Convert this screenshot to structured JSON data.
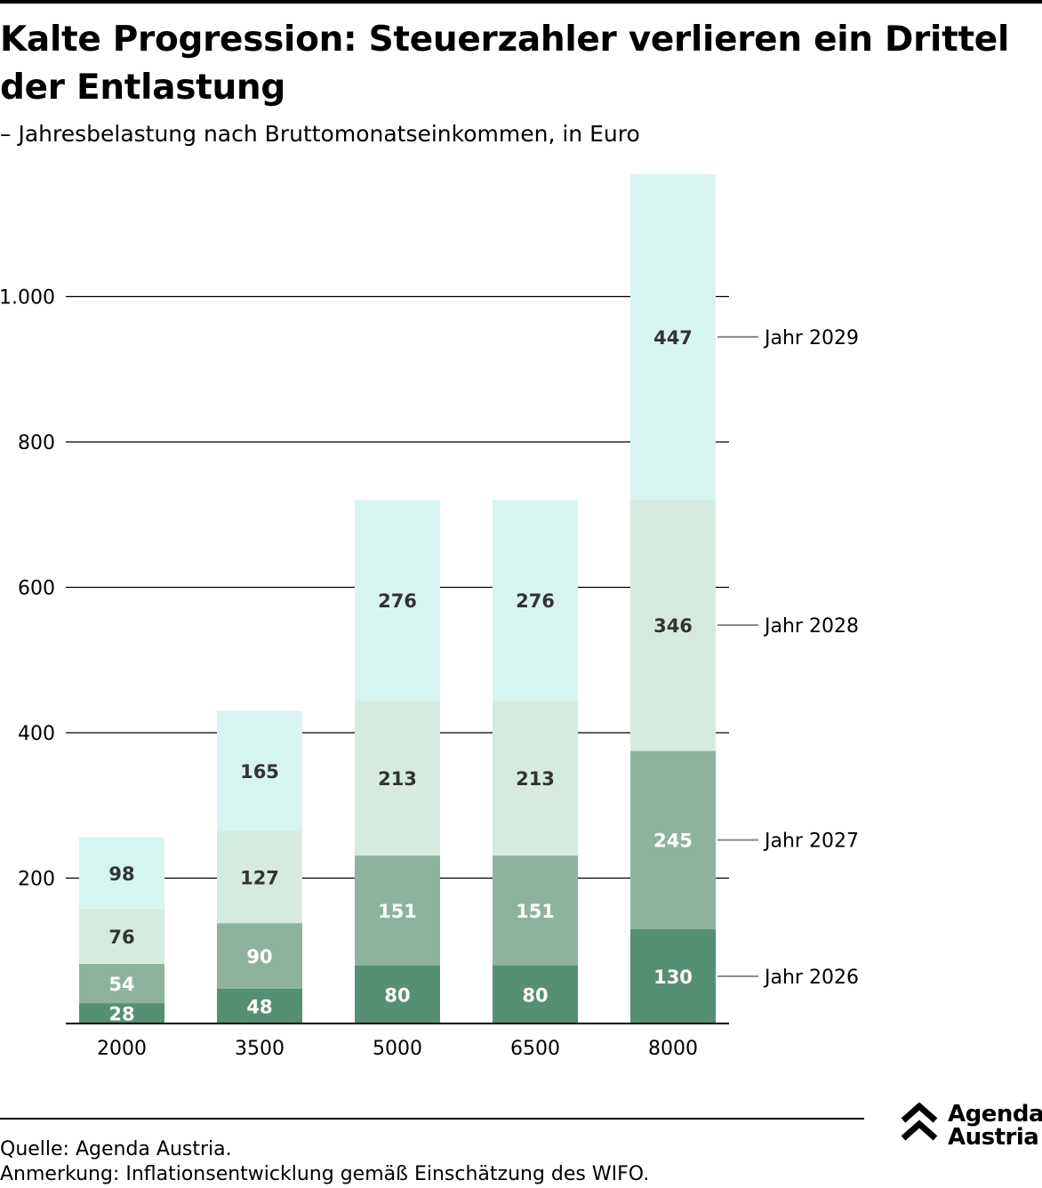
{
  "title": "Kalte Progression: Steuerzahler verlieren ein Drittel der Entlastung",
  "subtitle": "– Jahresbelastung nach Bruttomonatseinkommen, in Euro",
  "footer": {
    "source": "Quelle: Agenda Austria.",
    "note": "Anmerkung: Inflationsentwicklung gemäß Einschätzung des WIFO."
  },
  "logo": {
    "line1": "Agenda",
    "line2": "Austria"
  },
  "icons": {
    "logo": "double-chevron-up-icon"
  },
  "chart_data": {
    "type": "bar",
    "stacked": true,
    "categories": [
      "2000",
      "3500",
      "5000",
      "6500",
      "8000"
    ],
    "series": [
      {
        "name": "Jahr 2026",
        "values": [
          28,
          48,
          80,
          80,
          130
        ],
        "color": "#558f74",
        "label_color": "#ffffff"
      },
      {
        "name": "Jahr 2027",
        "values": [
          54,
          90,
          151,
          151,
          245
        ],
        "color": "#8db39f",
        "label_color": "#ffffff"
      },
      {
        "name": "Jahr 2028",
        "values": [
          76,
          127,
          213,
          213,
          346
        ],
        "color": "#d6ebdf",
        "label_color": "#333333"
      },
      {
        "name": "Jahr 2029",
        "values": [
          98,
          165,
          276,
          276,
          447
        ],
        "color": "#d7f5f0",
        "label_color": "#333333"
      }
    ],
    "stack_totals": [
      256,
      430,
      720,
      720,
      1168
    ],
    "y_ticks": [
      200,
      400,
      600,
      800,
      1000
    ],
    "y_tick_labels": [
      "200",
      "400",
      "600",
      "800",
      "1.000"
    ],
    "ylim": [
      0,
      1168
    ],
    "grid": true,
    "legend": "right, labels attached to the 8000 bar"
  }
}
